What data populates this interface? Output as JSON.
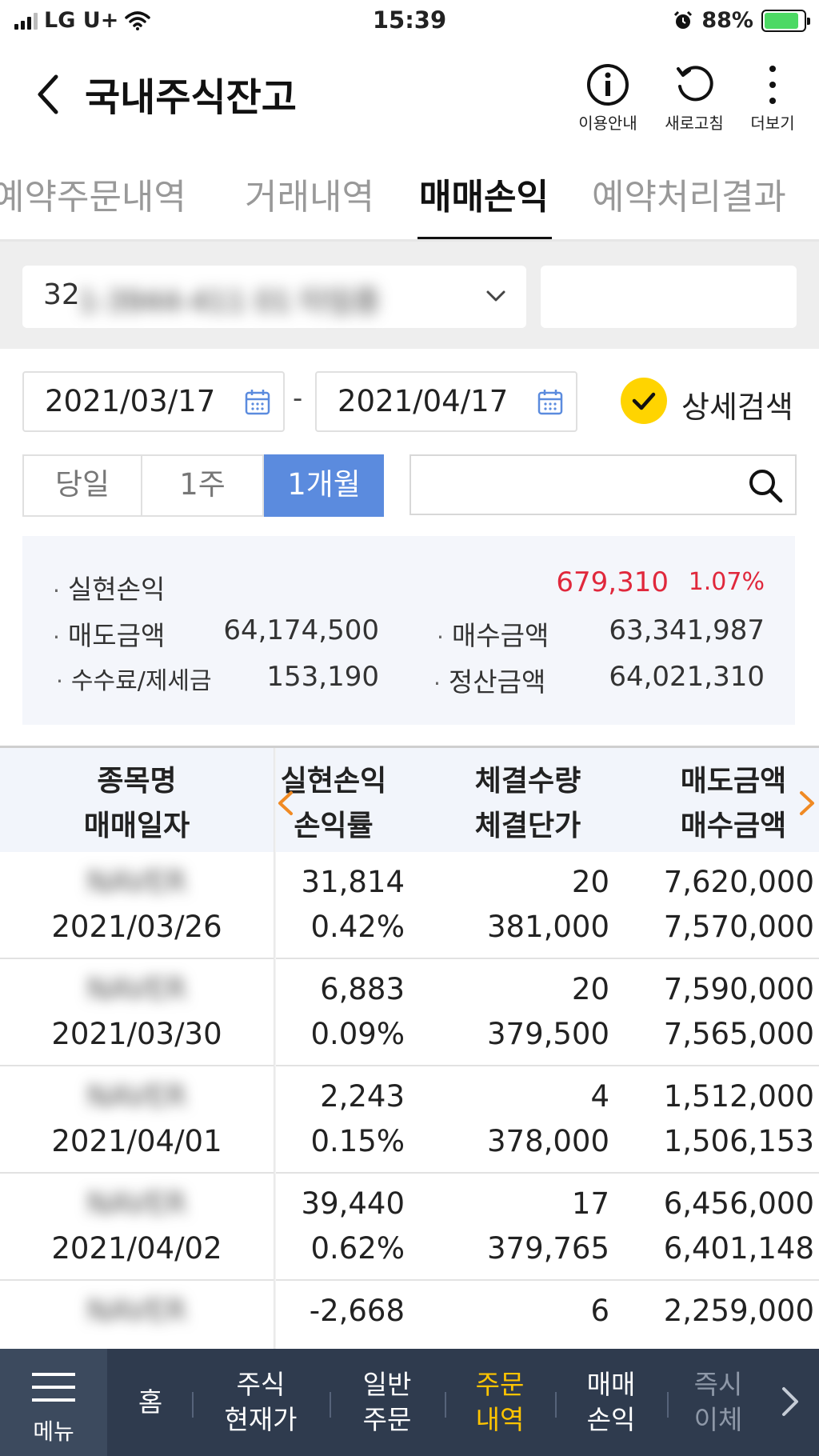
{
  "status_bar": {
    "carrier": "LG U+",
    "time": "15:39",
    "battery": "88%"
  },
  "header": {
    "title": "국내주식잔고",
    "actions": [
      {
        "label": "이용안내",
        "icon": "info-icon"
      },
      {
        "label": "새로고침",
        "icon": "refresh-icon"
      },
      {
        "label": "더보기",
        "icon": "more-vertical-icon"
      }
    ]
  },
  "tabs": [
    {
      "label": "예약주문내역"
    },
    {
      "label": "거래내역"
    },
    {
      "label": "매매손익"
    },
    {
      "label": "예약처리결과"
    }
  ],
  "account": {
    "number_prefix": "32",
    "number_hidden": "1-3944-411 01 타임종"
  },
  "date_range": {
    "from": "2021/03/17",
    "to": "2021/04/17",
    "separator": "-"
  },
  "detail_search": {
    "label": "상세검색",
    "checked": true
  },
  "periods": [
    {
      "label": "당일"
    },
    {
      "label": "1주"
    },
    {
      "label": "1개월"
    }
  ],
  "summary": {
    "realized_pl_label": "실현손익",
    "realized_pl": "679,310",
    "realized_pl_rate": "1.07%",
    "sell_amount_label": "매도금액",
    "sell_amount": "64,174,500",
    "buy_amount_label": "매수금액",
    "buy_amount": "63,341,987",
    "fee_tax_label": "수수료/제세금",
    "fee_tax": "153,190",
    "settle_amount_label": "정산금액",
    "settle_amount": "64,021,310"
  },
  "table": {
    "headers": {
      "col1_top": "종목명",
      "col1_bottom": "매매일자",
      "col2_top": "실현손익",
      "col2_bottom": "손익률",
      "col3_top": "체결수량",
      "col3_bottom": "체결단가",
      "col4_top": "매도금액",
      "col4_bottom": "매수금액"
    },
    "rows": [
      {
        "name": "NAVER",
        "date": "2021/03/26",
        "pl": "31,814",
        "rate": "0.42%",
        "qty": "20",
        "price": "381,000",
        "sell": "7,620,000",
        "buy": "7,570,000"
      },
      {
        "name": "NAVER",
        "date": "2021/03/30",
        "pl": "6,883",
        "rate": "0.09%",
        "qty": "20",
        "price": "379,500",
        "sell": "7,590,000",
        "buy": "7,565,000"
      },
      {
        "name": "NAVER",
        "date": "2021/04/01",
        "pl": "2,243",
        "rate": "0.15%",
        "qty": "4",
        "price": "378,000",
        "sell": "1,512,000",
        "buy": "1,506,153"
      },
      {
        "name": "NAVER",
        "date": "2021/04/02",
        "pl": "39,440",
        "rate": "0.62%",
        "qty": "17",
        "price": "379,765",
        "sell": "6,456,000",
        "buy": "6,401,148"
      },
      {
        "name": "NAVER",
        "date": "",
        "pl": "-2,668",
        "rate": "",
        "qty": "6",
        "price": "",
        "sell": "2,259,000",
        "buy": ""
      }
    ]
  },
  "bottom_nav": {
    "menu_label": "메뉴",
    "items": [
      {
        "label": "홈"
      },
      {
        "label": "주식\n현재가"
      },
      {
        "label": "일반\n주문"
      },
      {
        "label": "주문\n내역"
      },
      {
        "label": "매매\n손익"
      },
      {
        "label": "즉시\n이체"
      }
    ]
  },
  "colors": {
    "profit": "#e0283c",
    "loss": "#2e5fd4",
    "accent_blue": "#5b8bde",
    "active_nav": "#ffc400",
    "check_yellow": "#ffd400"
  }
}
